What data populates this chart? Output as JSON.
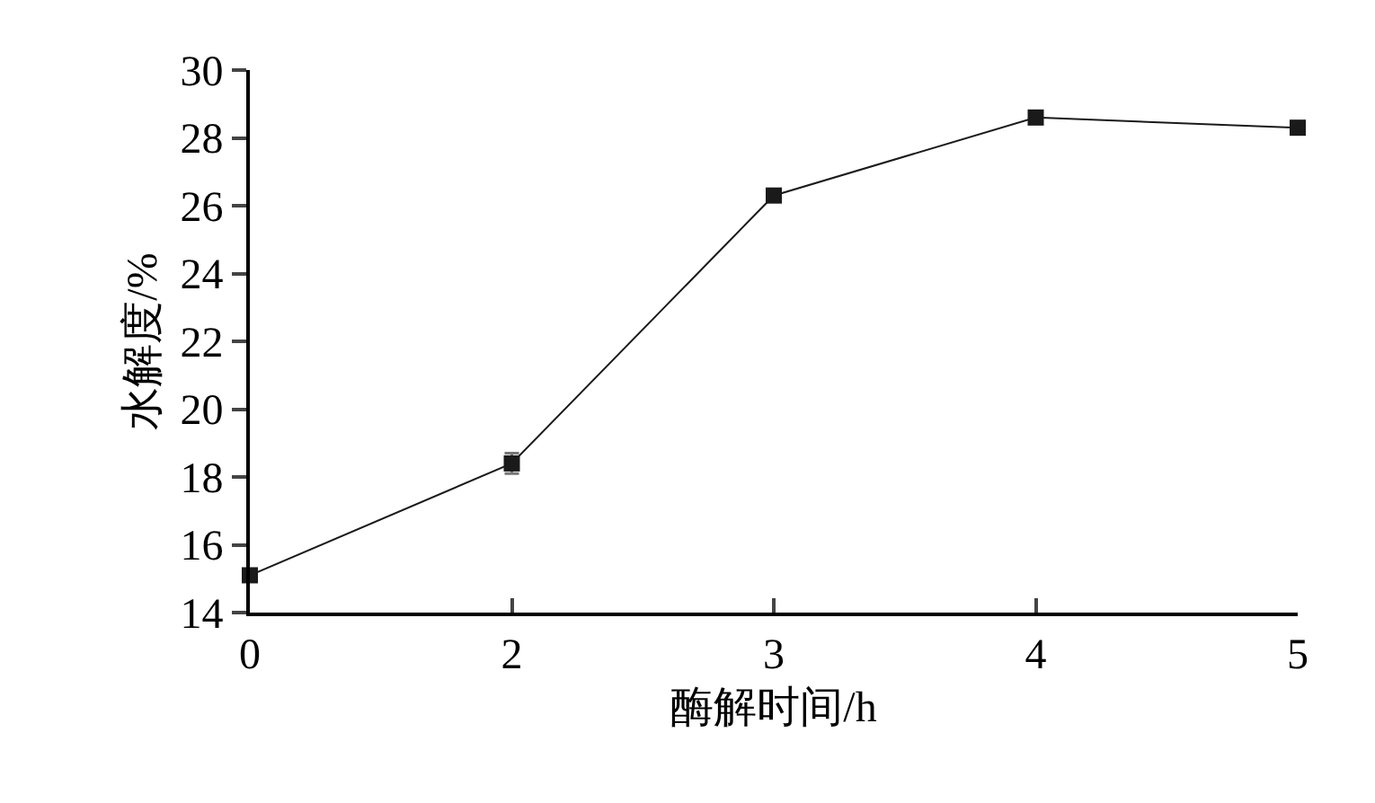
{
  "chart_data": {
    "type": "line",
    "xlabel": "酶解时间/h",
    "ylabel": "水解度/%",
    "categories": [
      "0",
      "2",
      "3",
      "4",
      "5"
    ],
    "series": [
      {
        "color": "#1a1a1a",
        "values": [
          15.1,
          18.4,
          26.3,
          28.6,
          28.3
        ],
        "errors": [
          0.1,
          0.3,
          0.1,
          0.1,
          0.1
        ]
      }
    ],
    "ylim": [
      14,
      30
    ],
    "yticks": [
      14,
      16,
      18,
      20,
      22,
      24,
      26,
      28,
      30
    ],
    "marker": "square",
    "line_style": "solid"
  }
}
